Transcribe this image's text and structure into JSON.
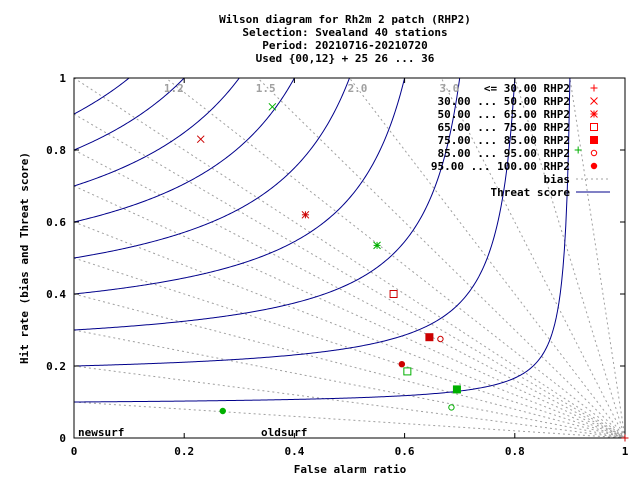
{
  "chart_data": {
    "type": "scatter",
    "title_lines": [
      "Wilson diagram  for Rh2m 2 patch (RHP2)",
      "Selection: Svealand     40 stations",
      "Period: 20210716-20210720",
      "Used {00,12} + 25 26 ... 36"
    ],
    "xlabel": "False alarm ratio",
    "ylabel": "Hit rate (bias and Threat score)",
    "xlim": [
      0,
      1
    ],
    "ylim": [
      0,
      1
    ],
    "x_ticks": [
      "0",
      "0.2",
      "0.4",
      "0.6",
      "0.8",
      "1"
    ],
    "y_ticks": [
      "0",
      "0.2",
      "0.4",
      "0.6",
      "0.8",
      "1"
    ],
    "bias_lines": [
      0.1,
      0.2,
      0.3,
      0.4,
      0.5,
      0.6,
      0.7,
      0.8,
      0.9,
      1.0,
      1.2,
      1.5,
      2.0,
      3.0,
      5.0,
      10.0
    ],
    "bias_labels": [
      "1.2",
      "1.5",
      "2.0",
      "3.0"
    ],
    "threat_score_lines": [
      0.1,
      0.2,
      0.3,
      0.4,
      0.5,
      0.6,
      0.7,
      0.8,
      0.9
    ],
    "legend_placement": "top-right",
    "legend": [
      {
        "label": "<= 30.00 RHP2",
        "marker": "plus",
        "color": "#ff0000"
      },
      {
        "label": "30.00 ... 50.00 RHP2",
        "marker": "cross",
        "color": "#ff0000"
      },
      {
        "label": "50.00 ... 65.00 RHP2",
        "marker": "star",
        "color": "#ff0000"
      },
      {
        "label": "65.00 ... 75.00 RHP2",
        "marker": "square-open",
        "color": "#ff0000"
      },
      {
        "label": "75.00 ... 85.00 RHP2",
        "marker": "square-filled",
        "color": "#ff0000"
      },
      {
        "label": "85.00 ... 95.00 RHP2",
        "marker": "circle-open",
        "color": "#ff0000"
      },
      {
        "label": "95.00 ... 100.00 RHP2",
        "marker": "circle-filled",
        "color": "#ff0000"
      },
      {
        "label": "bias",
        "line": "dotted",
        "color": "#a0a0a0"
      },
      {
        "label": "Threat score",
        "line": "solid",
        "color": "#00008b"
      }
    ],
    "series": [
      {
        "name": "newsurf",
        "color": "#cc0000",
        "points": [
          {
            "x": 1.0,
            "y": 0.0,
            "marker": "plus"
          },
          {
            "x": 0.23,
            "y": 0.83,
            "marker": "cross"
          },
          {
            "x": 0.42,
            "y": 0.62,
            "marker": "star"
          },
          {
            "x": 0.58,
            "y": 0.4,
            "marker": "square-open"
          },
          {
            "x": 0.645,
            "y": 0.28,
            "marker": "square-filled"
          },
          {
            "x": 0.665,
            "y": 0.275,
            "marker": "circle-open"
          },
          {
            "x": 0.595,
            "y": 0.205,
            "marker": "circle-filled"
          }
        ]
      },
      {
        "name": "oldsurf",
        "color": "#00b000",
        "points": [
          {
            "x": 0.915,
            "y": 0.8,
            "marker": "plus"
          },
          {
            "x": 0.36,
            "y": 0.92,
            "marker": "cross"
          },
          {
            "x": 0.55,
            "y": 0.535,
            "marker": "star"
          },
          {
            "x": 0.605,
            "y": 0.185,
            "marker": "square-open"
          },
          {
            "x": 0.695,
            "y": 0.135,
            "marker": "square-filled"
          },
          {
            "x": 0.685,
            "y": 0.085,
            "marker": "circle-open"
          },
          {
            "x": 0.27,
            "y": 0.075,
            "marker": "circle-filled"
          }
        ]
      }
    ]
  }
}
